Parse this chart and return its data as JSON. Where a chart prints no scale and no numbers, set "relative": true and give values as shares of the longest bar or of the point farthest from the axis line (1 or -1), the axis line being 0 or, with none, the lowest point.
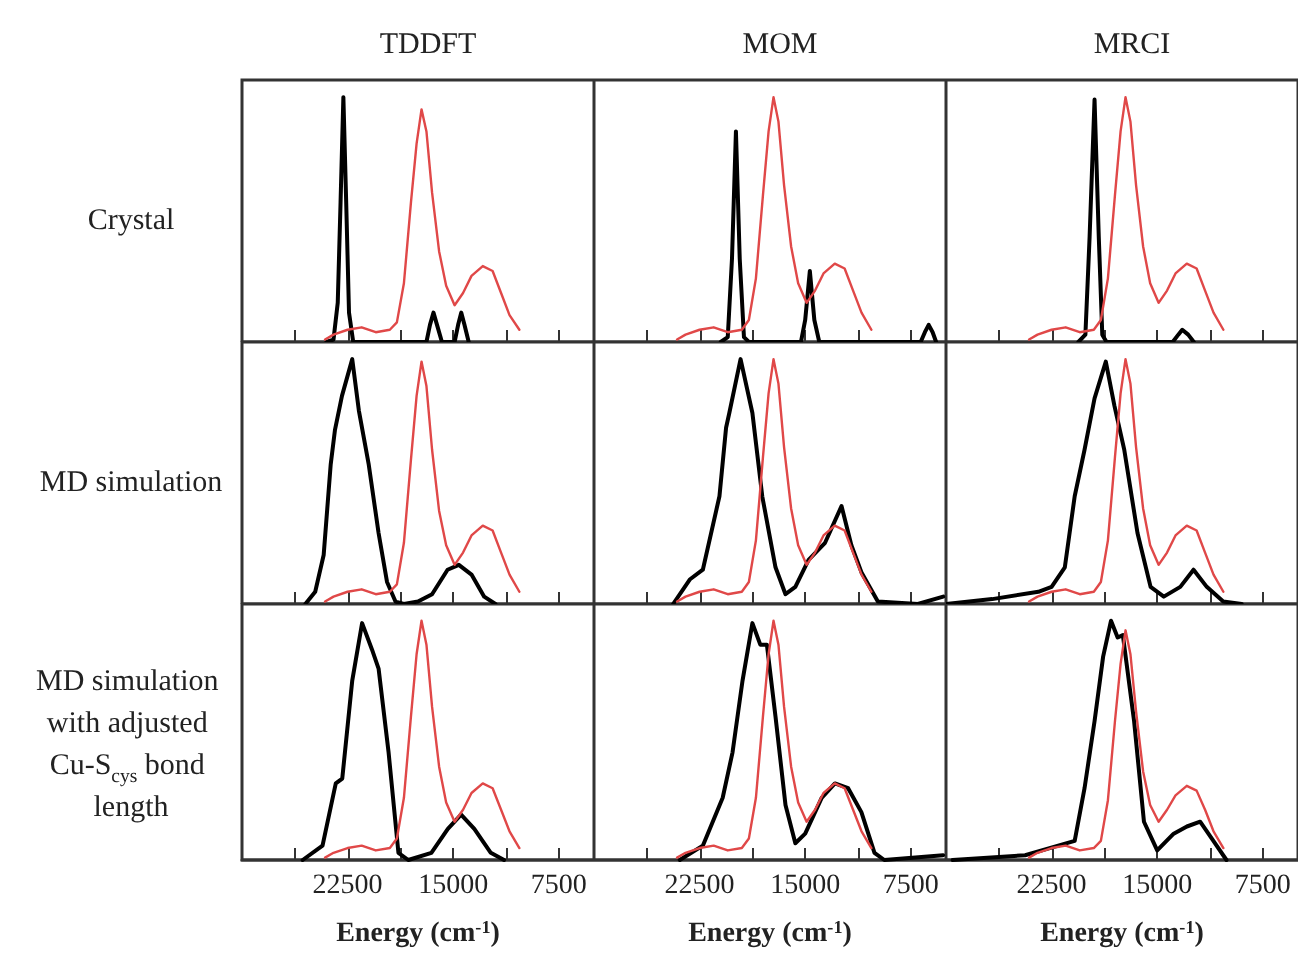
{
  "chart_data": [
    {
      "type": "line",
      "title": "TDDFT",
      "ylabel": "Crystal",
      "relative": true,
      "marker": "none",
      "tick_labels": false,
      "xlim": [
        30000,
        5000
      ],
      "xticks": [
        {
          "value": 26250,
          "label": null
        },
        22500,
        {
          "value": 18750,
          "label": null
        },
        15000,
        {
          "value": 11250,
          "label": null
        },
        7500
      ],
      "series": [
        {
          "color": "#000000",
          "x": [
            24000,
            23500,
            23200,
            23000,
            22800,
            22600,
            22400,
            22100,
            16900,
            16650,
            16400,
            16150,
            15800,
            14900,
            14650,
            14430,
            14200,
            13900
          ],
          "values": [
            0,
            0.01,
            0.16,
            0.57,
            1,
            0.57,
            0.12,
            0,
            0,
            0.07,
            0.12,
            0.07,
            0,
            0,
            0.07,
            0.12,
            0.07,
            0
          ]
        },
        {
          "color": "#e04848",
          "x": [
            24100,
            23500,
            22500,
            21500,
            20500,
            19500,
            19000,
            18500,
            18000,
            17600,
            17250,
            16900,
            16500,
            16000,
            15500,
            14900,
            14300,
            13700,
            12900,
            12200,
            11600,
            11000,
            10300
          ],
          "values": [
            0.01,
            0.03,
            0.05,
            0.06,
            0.04,
            0.05,
            0.08,
            0.24,
            0.57,
            0.81,
            0.95,
            0.86,
            0.61,
            0.37,
            0.23,
            0.15,
            0.2,
            0.27,
            0.31,
            0.29,
            0.2,
            0.11,
            0.05
          ]
        }
      ]
    },
    {
      "type": "line",
      "title": "MOM",
      "relative": true,
      "marker": "none",
      "tick_labels": false,
      "xlim": [
        30000,
        5000
      ],
      "xticks": [
        {
          "value": 26250,
          "label": null
        },
        22500,
        {
          "value": 18750,
          "label": null
        },
        15000,
        {
          "value": 11250,
          "label": null
        },
        7500
      ],
      "series": [
        {
          "color": "#000000",
          "x": [
            21000,
            20500,
            20200,
            19920,
            19650,
            19350,
            19000,
            15300,
            15000,
            14670,
            14350,
            14000,
            6800,
            6500,
            6230,
            5950,
            5700
          ],
          "values": [
            0,
            0.02,
            0.34,
            0.86,
            0.34,
            0.02,
            0,
            0,
            0.09,
            0.29,
            0.09,
            0,
            0,
            0.04,
            0.07,
            0.04,
            0
          ]
        },
        {
          "color": "#e04848",
          "x": [
            24100,
            23500,
            22500,
            21500,
            20500,
            19500,
            19000,
            18500,
            18000,
            17600,
            17250,
            16900,
            16500,
            16000,
            15500,
            14900,
            14300,
            13700,
            12900,
            12200,
            11600,
            11000,
            10300
          ],
          "values": [
            0.01,
            0.03,
            0.05,
            0.06,
            0.04,
            0.05,
            0.09,
            0.26,
            0.6,
            0.86,
            1,
            0.9,
            0.64,
            0.39,
            0.24,
            0.16,
            0.21,
            0.28,
            0.32,
            0.3,
            0.21,
            0.12,
            0.05
          ]
        }
      ]
    },
    {
      "type": "line",
      "title": "MRCI",
      "relative": true,
      "marker": "none",
      "tick_labels": false,
      "xlim": [
        30000,
        5000
      ],
      "xticks": [
        {
          "value": 26250,
          "label": null
        },
        22500,
        {
          "value": 18750,
          "label": null
        },
        15000,
        {
          "value": 11250,
          "label": null
        },
        7500
      ],
      "series": [
        {
          "color": "#000000",
          "x": [
            20600,
            20100,
            19800,
            19450,
            19150,
            18900,
            18600,
            13900,
            13500,
            13220,
            12800,
            12400
          ],
          "values": [
            0,
            0.03,
            0.43,
            0.99,
            0.43,
            0.03,
            0,
            0,
            0.03,
            0.05,
            0.03,
            0
          ]
        },
        {
          "color": "#e04848",
          "x": [
            24100,
            23500,
            22500,
            21500,
            20500,
            19500,
            19000,
            18500,
            18000,
            17600,
            17250,
            16900,
            16500,
            16000,
            15500,
            14900,
            14300,
            13700,
            12900,
            12200,
            11600,
            11000,
            10300
          ],
          "values": [
            0.01,
            0.03,
            0.05,
            0.06,
            0.04,
            0.05,
            0.09,
            0.26,
            0.6,
            0.86,
            1,
            0.9,
            0.64,
            0.39,
            0.24,
            0.16,
            0.21,
            0.28,
            0.32,
            0.3,
            0.21,
            0.12,
            0.05
          ]
        }
      ]
    },
    {
      "type": "line",
      "ylabel": "MD simulation",
      "relative": true,
      "marker": "none",
      "tick_labels": false,
      "xlim": [
        30000,
        5000
      ],
      "xticks": [
        {
          "value": 26250,
          "label": null
        },
        22500,
        {
          "value": 18750,
          "label": null
        },
        15000,
        {
          "value": 11250,
          "label": null
        },
        7500
      ],
      "series": [
        {
          "color": "#000000",
          "x": [
            25500,
            24800,
            24200,
            23700,
            23400,
            22900,
            22170,
            21700,
            21000,
            20300,
            19700,
            19100,
            18500,
            17500,
            16500,
            15400,
            14600,
            13700,
            12800,
            12000
          ],
          "values": [
            0,
            0.05,
            0.2,
            0.57,
            0.71,
            0.85,
            1,
            0.79,
            0.57,
            0.29,
            0.09,
            0.01,
            0,
            0.01,
            0.04,
            0.14,
            0.16,
            0.12,
            0.03,
            0
          ]
        },
        {
          "color": "#e04848",
          "x": [
            24100,
            23500,
            22500,
            21500,
            20500,
            19500,
            19000,
            18500,
            18000,
            17600,
            17250,
            16900,
            16500,
            16000,
            15500,
            14900,
            14300,
            13700,
            12900,
            12200,
            11600,
            11000,
            10300
          ],
          "values": [
            0.01,
            0.03,
            0.05,
            0.06,
            0.04,
            0.05,
            0.08,
            0.25,
            0.59,
            0.85,
            0.99,
            0.89,
            0.63,
            0.38,
            0.24,
            0.16,
            0.21,
            0.28,
            0.32,
            0.3,
            0.21,
            0.12,
            0.05
          ]
        }
      ]
    },
    {
      "type": "line",
      "relative": true,
      "marker": "none",
      "tick_labels": false,
      "xlim": [
        30000,
        5000
      ],
      "xticks": [
        {
          "value": 26250,
          "label": null
        },
        22500,
        {
          "value": 18750,
          "label": null
        },
        15000,
        {
          "value": 11250,
          "label": null
        },
        7500
      ],
      "series": [
        {
          "color": "#000000",
          "x": [
            24380,
            23200,
            22270,
            21090,
            20620,
            20390,
            19590,
            18750,
            18050,
            17110,
            16400,
            15700,
            14760,
            13590,
            12420,
            11720,
            11010,
            9840,
            7000,
            5200
          ],
          "values": [
            0,
            0.1,
            0.14,
            0.44,
            0.72,
            0.78,
            1,
            0.78,
            0.44,
            0.15,
            0.04,
            0.07,
            0.18,
            0.25,
            0.4,
            0.24,
            0.13,
            0.01,
            0,
            0.03
          ]
        },
        {
          "color": "#e04848",
          "x": [
            24100,
            23500,
            22500,
            21500,
            20500,
            19500,
            19000,
            18500,
            18000,
            17600,
            17250,
            16900,
            16500,
            16000,
            15500,
            14900,
            14300,
            13700,
            12900,
            12200,
            11600,
            11000,
            10300
          ],
          "values": [
            0.01,
            0.03,
            0.05,
            0.06,
            0.04,
            0.05,
            0.09,
            0.26,
            0.6,
            0.86,
            1,
            0.9,
            0.64,
            0.39,
            0.24,
            0.16,
            0.21,
            0.28,
            0.32,
            0.3,
            0.21,
            0.12,
            0.05
          ]
        }
      ]
    },
    {
      "type": "line",
      "relative": true,
      "marker": "none",
      "tick_labels": false,
      "xlim": [
        30000,
        5000
      ],
      "xticks": [
        {
          "value": 26250,
          "label": null
        },
        22500,
        {
          "value": 18750,
          "label": null
        },
        15000,
        {
          "value": 11250,
          "label": null
        },
        7500
      ],
      "series": [
        {
          "color": "#000000",
          "x": [
            30000,
            26720,
            23440,
            22500,
            21560,
            20860,
            20160,
            19450,
            18650,
            18040,
            17340,
            16400,
            15470,
            14530,
            13360,
            12420,
            11480,
            10310,
            9000
          ],
          "values": [
            0,
            0.02,
            0.05,
            0.07,
            0.15,
            0.44,
            0.63,
            0.84,
            0.99,
            0.81,
            0.63,
            0.29,
            0.07,
            0.03,
            0.07,
            0.14,
            0.07,
            0.01,
            0
          ]
        },
        {
          "color": "#e04848",
          "x": [
            24100,
            23500,
            22500,
            21500,
            20500,
            19500,
            19000,
            18500,
            18000,
            17600,
            17250,
            16900,
            16500,
            16000,
            15500,
            14900,
            14300,
            13700,
            12900,
            12200,
            11600,
            11000,
            10300
          ],
          "values": [
            0.01,
            0.03,
            0.05,
            0.06,
            0.04,
            0.05,
            0.09,
            0.26,
            0.6,
            0.86,
            1,
            0.9,
            0.64,
            0.39,
            0.24,
            0.16,
            0.21,
            0.28,
            0.32,
            0.3,
            0.21,
            0.12,
            0.05
          ]
        }
      ]
    },
    {
      "type": "line",
      "ylabel": "MD simulation with adjusted Cu-S$_{cys}$ bond length",
      "xlabel": "Energy (cm$^{-1}$)",
      "relative": true,
      "marker": "none",
      "tick_labels": "x",
      "xlim": [
        30000,
        5000
      ],
      "xticks": [
        {
          "value": 26250,
          "label": null
        },
        22500,
        {
          "value": 18750,
          "label": null
        },
        15000,
        {
          "value": 11250,
          "label": null
        },
        7500
      ],
      "series": [
        {
          "color": "#000000",
          "x": [
            25690,
            24280,
            23340,
            22880,
            22170,
            21470,
            20770,
            20300,
            19590,
            18890,
            18190,
            16550,
            15380,
            14440,
            13500,
            12330,
            11390
          ],
          "values": [
            0,
            0.06,
            0.32,
            0.34,
            0.75,
            0.99,
            0.88,
            0.8,
            0.45,
            0.03,
            0,
            0.03,
            0.13,
            0.19,
            0.13,
            0.03,
            0
          ]
        },
        {
          "color": "#e04848",
          "x": [
            24100,
            23500,
            22500,
            21500,
            20500,
            19500,
            19000,
            18500,
            18000,
            17600,
            17250,
            16900,
            16500,
            16000,
            15500,
            14900,
            14300,
            13700,
            12900,
            12200,
            11600,
            11000,
            10300
          ],
          "values": [
            0.01,
            0.03,
            0.05,
            0.06,
            0.04,
            0.05,
            0.09,
            0.26,
            0.6,
            0.86,
            1,
            0.9,
            0.64,
            0.39,
            0.24,
            0.16,
            0.21,
            0.28,
            0.32,
            0.3,
            0.21,
            0.12,
            0.05
          ]
        }
      ]
    },
    {
      "type": "line",
      "xlabel": "Energy (cm$^{-1}$)",
      "relative": true,
      "marker": "none",
      "tick_labels": "x",
      "xlim": [
        30000,
        5000
      ],
      "xticks": [
        {
          "value": 26250,
          "label": null
        },
        22500,
        {
          "value": 18750,
          "label": null
        },
        15000,
        {
          "value": 11250,
          "label": null
        },
        7500
      ],
      "series": [
        {
          "color": "#000000",
          "x": [
            23910,
            22270,
            20860,
            20160,
            19450,
            18750,
            18190,
            17720,
            17110,
            16400,
            15700,
            15000,
            13830,
            12890,
            11950,
            11010,
            10080,
            9380,
            5200
          ],
          "values": [
            0,
            0.06,
            0.26,
            0.45,
            0.75,
            0.99,
            0.9,
            0.9,
            0.6,
            0.23,
            0.07,
            0.11,
            0.26,
            0.32,
            0.3,
            0.2,
            0.03,
            0,
            0.02
          ]
        },
        {
          "color": "#e04848",
          "x": [
            24100,
            23500,
            22500,
            21500,
            20500,
            19500,
            19000,
            18500,
            18000,
            17600,
            17250,
            16900,
            16500,
            16000,
            15500,
            14900,
            14300,
            13700,
            12900,
            12200,
            11600,
            11000,
            10300
          ],
          "values": [
            0.01,
            0.03,
            0.05,
            0.06,
            0.04,
            0.05,
            0.09,
            0.26,
            0.6,
            0.86,
            1,
            0.9,
            0.64,
            0.39,
            0.24,
            0.16,
            0.21,
            0.28,
            0.32,
            0.3,
            0.21,
            0.12,
            0.05
          ]
        }
      ]
    },
    {
      "type": "line",
      "xlabel": "Energy (cm$^{-1}$)",
      "relative": true,
      "marker": "none",
      "tick_labels": "x",
      "xlim": [
        30000,
        5000
      ],
      "xticks": [
        {
          "value": 26250,
          "label": null
        },
        22500,
        {
          "value": 18750,
          "label": null
        },
        15000,
        {
          "value": 11250,
          "label": null
        },
        7500
      ],
      "series": [
        {
          "color": "#000000",
          "x": [
            29530,
            24380,
            22030,
            20860,
            20160,
            19450,
            18840,
            18280,
            17810,
            17440,
            16640,
            15940,
            15000,
            13830,
            12890,
            11950,
            11010,
            10080
          ],
          "values": [
            0,
            0.02,
            0.06,
            0.08,
            0.3,
            0.58,
            0.85,
            1,
            0.93,
            0.94,
            0.58,
            0.16,
            0.04,
            0.11,
            0.14,
            0.16,
            0.08,
            0
          ]
        },
        {
          "color": "#e04848",
          "x": [
            24100,
            23500,
            22500,
            21500,
            20500,
            19500,
            19000,
            18500,
            18000,
            17600,
            17250,
            16900,
            16500,
            16000,
            15500,
            14900,
            14300,
            13700,
            12900,
            12200,
            11600,
            11000,
            10300
          ],
          "values": [
            0.01,
            0.03,
            0.05,
            0.06,
            0.04,
            0.05,
            0.08,
            0.25,
            0.58,
            0.82,
            0.96,
            0.86,
            0.62,
            0.37,
            0.23,
            0.16,
            0.21,
            0.27,
            0.31,
            0.29,
            0.21,
            0.12,
            0.05
          ]
        }
      ]
    }
  ]
}
